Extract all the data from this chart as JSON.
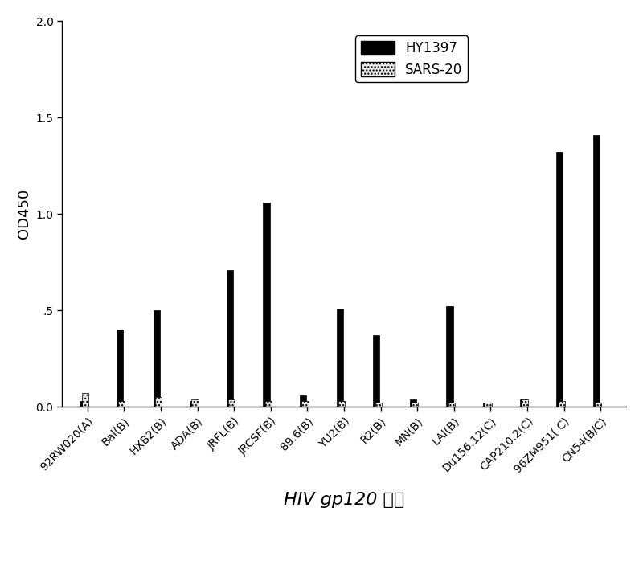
{
  "categories": [
    "92RW020(A)",
    "Bal(B)",
    "HXB2(B)",
    "ADA(B)",
    "JRFL(B)",
    "JRCSF(B)",
    "89.6(B)",
    "YU2(B)",
    "R2(B)",
    "MN(B)",
    "LAI(B)",
    "Du156.12(C)",
    "CAP210.2(C)",
    "96ZM951( C)",
    "CN54(B/C)"
  ],
  "HY1397": [
    0.03,
    0.4,
    0.5,
    0.03,
    0.71,
    1.06,
    0.06,
    0.51,
    0.37,
    0.04,
    0.52,
    0.02,
    0.04,
    1.32,
    1.41
  ],
  "SARS20": [
    0.07,
    0.03,
    0.05,
    0.04,
    0.04,
    0.03,
    0.03,
    0.03,
    0.02,
    0.02,
    0.02,
    0.02,
    0.04,
    0.03,
    0.02
  ],
  "bar_width": 0.18,
  "bar_gap": 0.05,
  "ylim": [
    0,
    2.0
  ],
  "yticks": [
    0.0,
    0.5,
    1.0,
    1.5,
    2.0
  ],
  "ytick_labels": [
    "0.0",
    ".5",
    "1.0",
    "1.5",
    "2.0"
  ],
  "ylabel": "OD450",
  "xlabel_normal": "HIV gp120 ",
  "xlabel_chinese": "抗原",
  "legend_labels": [
    "HY1397",
    "SARS-20"
  ],
  "color_HY1397": "#000000",
  "color_SARS20_facecolor": "#e8e8e8",
  "color_SARS20_hatch": "....",
  "bg_color": "#ffffff",
  "label_fontsize": 13,
  "tick_fontsize": 10,
  "legend_fontsize": 12
}
